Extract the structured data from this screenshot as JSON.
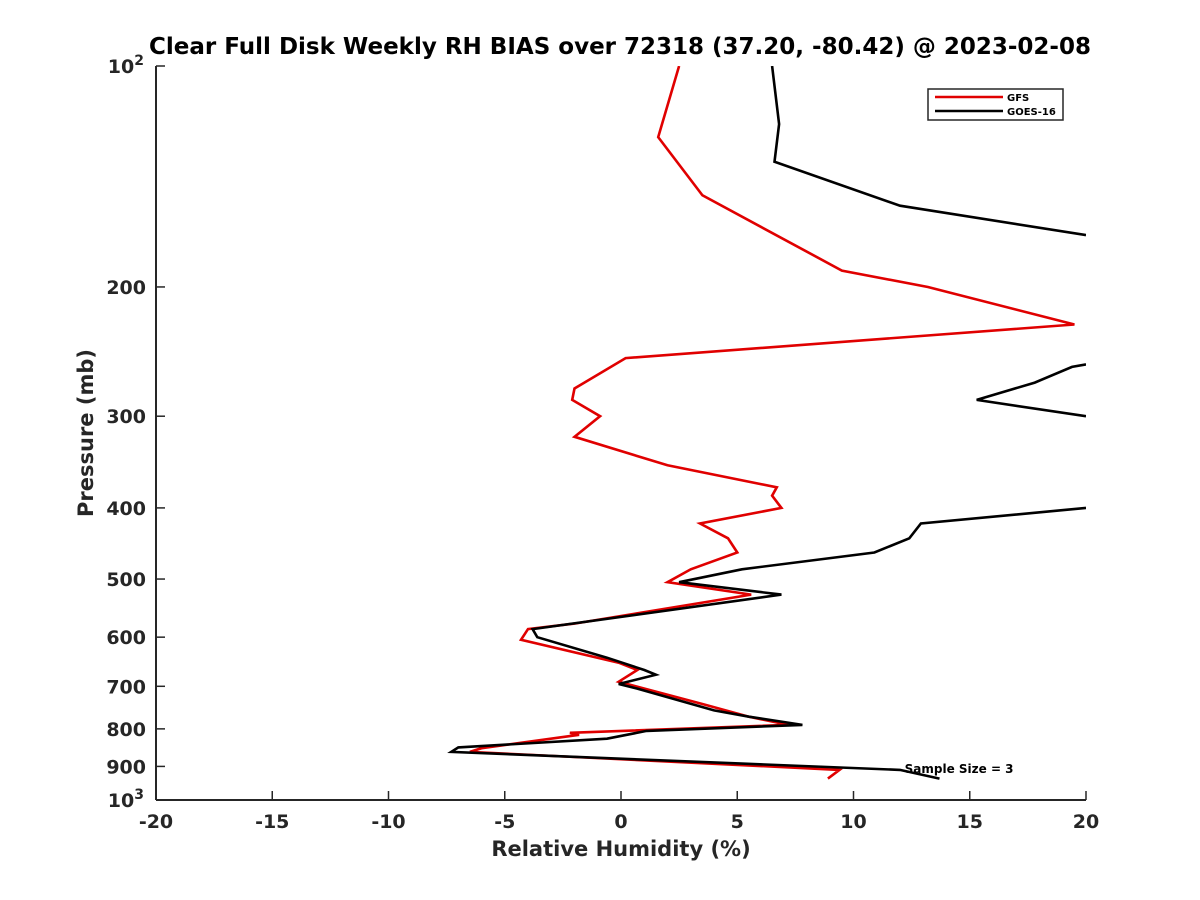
{
  "chart_data": {
    "type": "line",
    "title": "Clear Full Disk Weekly RH BIAS over 72318 (37.20, -80.42) @ 2023-02-08",
    "xlabel": "Relative Humidity (%)",
    "ylabel": "Pressure (mb)",
    "xlim": [
      -20,
      20
    ],
    "ylim": [
      100,
      1000
    ],
    "y_scale": "log",
    "y_reversed": true,
    "grid": false,
    "legend_position": "top-right",
    "x_ticks": [
      {
        "value": -20,
        "label": "-20"
      },
      {
        "value": -15,
        "label": "-15"
      },
      {
        "value": -10,
        "label": "-10"
      },
      {
        "value": -5,
        "label": "-5"
      },
      {
        "value": 0,
        "label": "0"
      },
      {
        "value": 5,
        "label": "5"
      },
      {
        "value": 10,
        "label": "10"
      },
      {
        "value": 15,
        "label": "15"
      },
      {
        "value": 20,
        "label": "20"
      }
    ],
    "y_ticks": [
      {
        "value": 100,
        "label": "10",
        "sup": "2"
      },
      {
        "value": 200,
        "label": "200"
      },
      {
        "value": 300,
        "label": "300"
      },
      {
        "value": 400,
        "label": "400"
      },
      {
        "value": 500,
        "label": "500"
      },
      {
        "value": 600,
        "label": "600"
      },
      {
        "value": 700,
        "label": "700"
      },
      {
        "value": 800,
        "label": "800"
      },
      {
        "value": 900,
        "label": "900"
      },
      {
        "value": 1000,
        "label": "10",
        "sup": "3"
      }
    ],
    "series": [
      {
        "name": "GFS",
        "color": "#e00000",
        "points": [
          [
            2.5,
            100
          ],
          [
            1.6,
            125
          ],
          [
            3.5,
            150
          ],
          [
            9.5,
            190
          ],
          [
            13.2,
            200
          ],
          [
            19.5,
            225
          ],
          [
            0.2,
            250
          ],
          [
            -2.0,
            275
          ],
          [
            -2.1,
            285
          ],
          [
            -0.9,
            300
          ],
          [
            -2.0,
            320
          ],
          [
            2.0,
            350
          ],
          [
            6.7,
            375
          ],
          [
            6.5,
            385
          ],
          [
            6.9,
            400
          ],
          [
            3.4,
            420
          ],
          [
            4.6,
            440
          ],
          [
            5.0,
            460
          ],
          [
            3.0,
            485
          ],
          [
            2.0,
            505
          ],
          [
            5.6,
            525
          ],
          [
            -2.0,
            575
          ],
          [
            -4.0,
            585
          ],
          [
            -4.3,
            605
          ],
          [
            -0.1,
            650
          ],
          [
            0.7,
            665
          ],
          [
            -0.1,
            690
          ],
          [
            3.5,
            740
          ],
          [
            5.5,
            770
          ],
          [
            7.2,
            790
          ],
          [
            -2.2,
            810
          ],
          [
            -1.8,
            815
          ],
          [
            -6.0,
            850
          ],
          [
            -6.5,
            860
          ],
          [
            9.4,
            910
          ],
          [
            8.9,
            935
          ]
        ]
      },
      {
        "name": "GOES-16",
        "color": "#000000",
        "points": [
          [
            6.5,
            100
          ],
          [
            6.8,
            120
          ],
          [
            6.6,
            135
          ],
          [
            12.0,
            155
          ],
          [
            20.0,
            170
          ],
          [
            null,
            null
          ],
          [
            20.0,
            255
          ],
          [
            19.4,
            257
          ],
          [
            17.8,
            270
          ],
          [
            15.3,
            285
          ],
          [
            20.0,
            300
          ],
          [
            null,
            null
          ],
          [
            20.0,
            400
          ],
          [
            12.9,
            420
          ],
          [
            12.4,
            440
          ],
          [
            10.9,
            460
          ],
          [
            5.2,
            485
          ],
          [
            2.5,
            505
          ],
          [
            6.9,
            525
          ],
          [
            -3.8,
            585
          ],
          [
            -3.6,
            600
          ],
          [
            -0.6,
            640
          ],
          [
            1.0,
            665
          ],
          [
            1.5,
            675
          ],
          [
            -0.1,
            695
          ],
          [
            0.7,
            705
          ],
          [
            4.0,
            755
          ],
          [
            5.5,
            770
          ],
          [
            7.8,
            790
          ],
          [
            1.1,
            805
          ],
          [
            -0.6,
            825
          ],
          [
            -7.0,
            848
          ],
          [
            -7.3,
            860
          ],
          [
            12.0,
            910
          ],
          [
            13.7,
            935
          ]
        ]
      }
    ],
    "legend": [
      {
        "label": "GFS",
        "color": "#e00000"
      },
      {
        "label": "GOES-16",
        "color": "#000000"
      }
    ],
    "annotation": {
      "text": "Sample Size = 3",
      "x": 12.5,
      "y": 905
    }
  }
}
